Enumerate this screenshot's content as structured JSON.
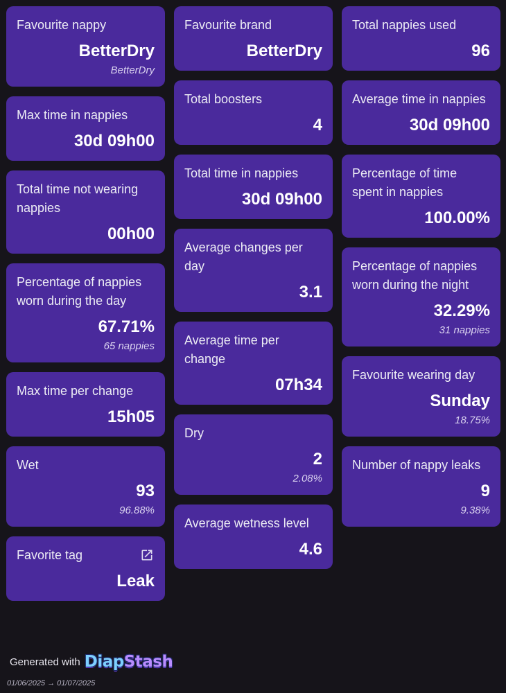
{
  "col1": [
    {
      "label": "Favourite nappy",
      "value": "BetterDry",
      "sub": "BetterDry"
    },
    {
      "label": "Max time in nappies",
      "value": "30d 09h00"
    },
    {
      "label": "Total time not wearing nappies",
      "value": "00h00"
    },
    {
      "label": "Percentage of nappies worn during the day",
      "value": "67.71%",
      "sub": "65 nappies"
    },
    {
      "label": "Max time per change",
      "value": "15h05"
    },
    {
      "label": "Wet",
      "value": "93",
      "sub": "96.88%"
    },
    {
      "label": "Favorite tag",
      "value": "Leak",
      "icon": "external-link-icon"
    }
  ],
  "col2": [
    {
      "label": "Favourite brand",
      "value": "BetterDry"
    },
    {
      "label": "Total boosters",
      "value": "4"
    },
    {
      "label": "Total time in nappies",
      "value": "30d 09h00"
    },
    {
      "label": "Average changes per day",
      "value": "3.1"
    },
    {
      "label": "Average time per change",
      "value": "07h34"
    },
    {
      "label": "Dry",
      "value": "2",
      "sub": "2.08%"
    },
    {
      "label": "Average wetness level",
      "value": "4.6"
    }
  ],
  "col3": [
    {
      "label": "Total nappies used",
      "value": "96"
    },
    {
      "label": "Average time in nappies",
      "value": "30d 09h00"
    },
    {
      "label": "Percentage of time spent in nappies",
      "value": "100.00%"
    },
    {
      "label": "Percentage of nappies worn during the night",
      "value": "32.29%",
      "sub": "31 nappies"
    },
    {
      "label": "Favourite wearing day",
      "value": "Sunday",
      "sub": "18.75%"
    },
    {
      "label": "Number of nappy leaks",
      "value": "9",
      "sub": "9.38%"
    }
  ],
  "footer": {
    "generated_with": "Generated with",
    "logo_part1": "Diap",
    "logo_part2": "Stash",
    "date_range": "01/06/2025 → 01/07/2025"
  },
  "colors": {
    "background": "#16141a",
    "card": "#4a2a9c",
    "logo_blue": "#7ed0ff",
    "logo_purple": "#b98cff"
  }
}
